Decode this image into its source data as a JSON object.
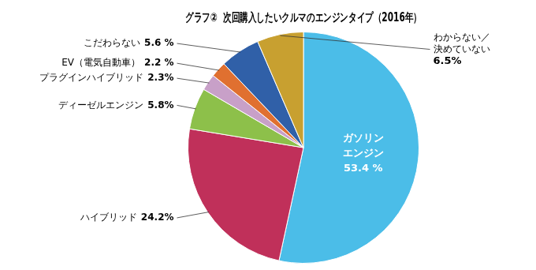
{
  "chart_data": {
    "type": "pie",
    "title": "グラフ②  次回購入したいクルマのエンジンタイプ（2016年）",
    "categories": [
      "ガソリン\nエンジン",
      "ハイブリッド",
      "ディーゼルエンジン",
      "プラグインハイブリッド",
      "EV（電気自動車）",
      "こだわらない",
      "わからない／\n決めていない"
    ],
    "values": [
      53.4,
      24.2,
      5.8,
      2.3,
      2.2,
      5.6,
      6.5
    ],
    "value_labels": [
      "53.4 %",
      "24.2%",
      "5.8%",
      "2.3%",
      "2.2 %",
      "5.6 %",
      "6.5%"
    ],
    "colors": [
      "#4BBDE8",
      "#C0305A",
      "#8DC04A",
      "#C8A0C8",
      "#E07030",
      "#3060A8",
      "#C8A030"
    ],
    "data_labels": true
  }
}
